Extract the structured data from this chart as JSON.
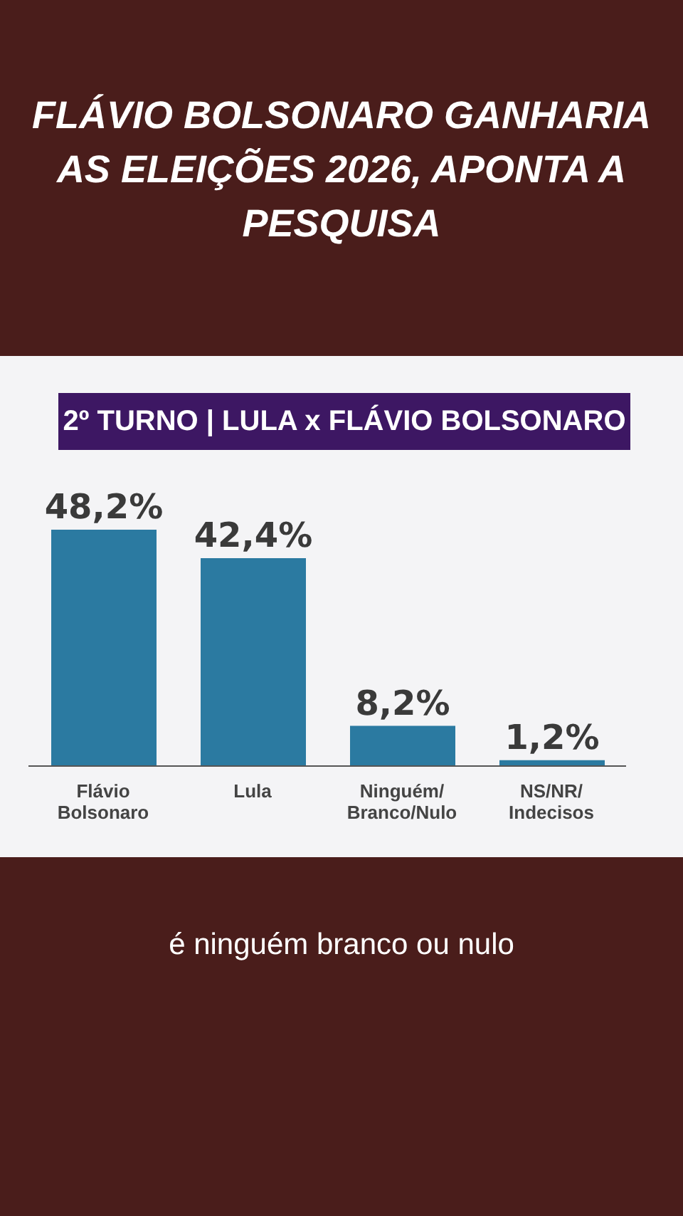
{
  "chart_data": {
    "type": "bar",
    "title": "FLÁVIO BOLSONARO GANHARIA AS ELEIÇÕES 2026, APONTA A PESQUISA",
    "subtitle": "2º TURNO | LULA x FLÁVIO BOLSONARO",
    "categories": [
      "Flávio Bolsonaro",
      "Lula",
      "Ninguém/Branco/Nulo",
      "NS/NR/Indecisos"
    ],
    "values": [
      48.2,
      42.4,
      8.2,
      1.2
    ],
    "value_labels": [
      "48,2%",
      "42,4%",
      "8,2%",
      "1,2%"
    ],
    "color": "#2b7aa1",
    "grid": false,
    "legend": false,
    "annotations": [
      "é ninguém branco ou nulo"
    ]
  }
}
